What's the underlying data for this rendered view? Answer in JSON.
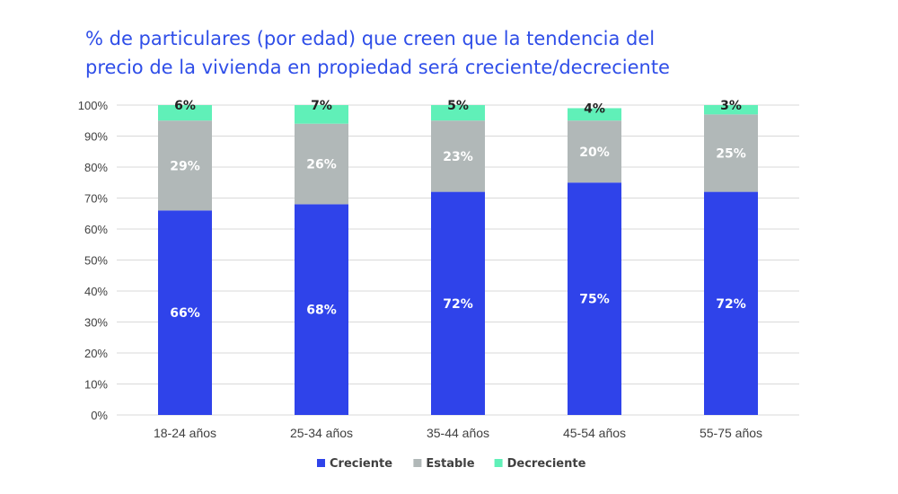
{
  "chart_data": {
    "type": "bar",
    "stacked": true,
    "title_lines": [
      "% de particulares (por edad) que creen que la tendencia del",
      "precio de la vivienda en propiedad será creciente/decreciente"
    ],
    "categories": [
      "18-24 años",
      "25-34 años",
      "35-44 años",
      "45-54 años",
      "55-75 años"
    ],
    "series": [
      {
        "name": "Creciente",
        "color": "#2f43ea",
        "label_color": "#ffffff",
        "values": [
          66,
          68,
          72,
          75,
          72
        ]
      },
      {
        "name": "Estable",
        "color": "#b1b8b8",
        "label_color": "#ffffff",
        "values": [
          29,
          26,
          23,
          20,
          25
        ]
      },
      {
        "name": "Decreciente",
        "color": "#60f0b8",
        "label_color": "#222222",
        "values": [
          6,
          7,
          5,
          4,
          3
        ]
      }
    ],
    "ylim": [
      0,
      100
    ],
    "yticks": [
      "0%",
      "10%",
      "20%",
      "30%",
      "40%",
      "50%",
      "60%",
      "70%",
      "80%",
      "90%",
      "100%"
    ],
    "grid": true,
    "legend": "bottom-center"
  }
}
